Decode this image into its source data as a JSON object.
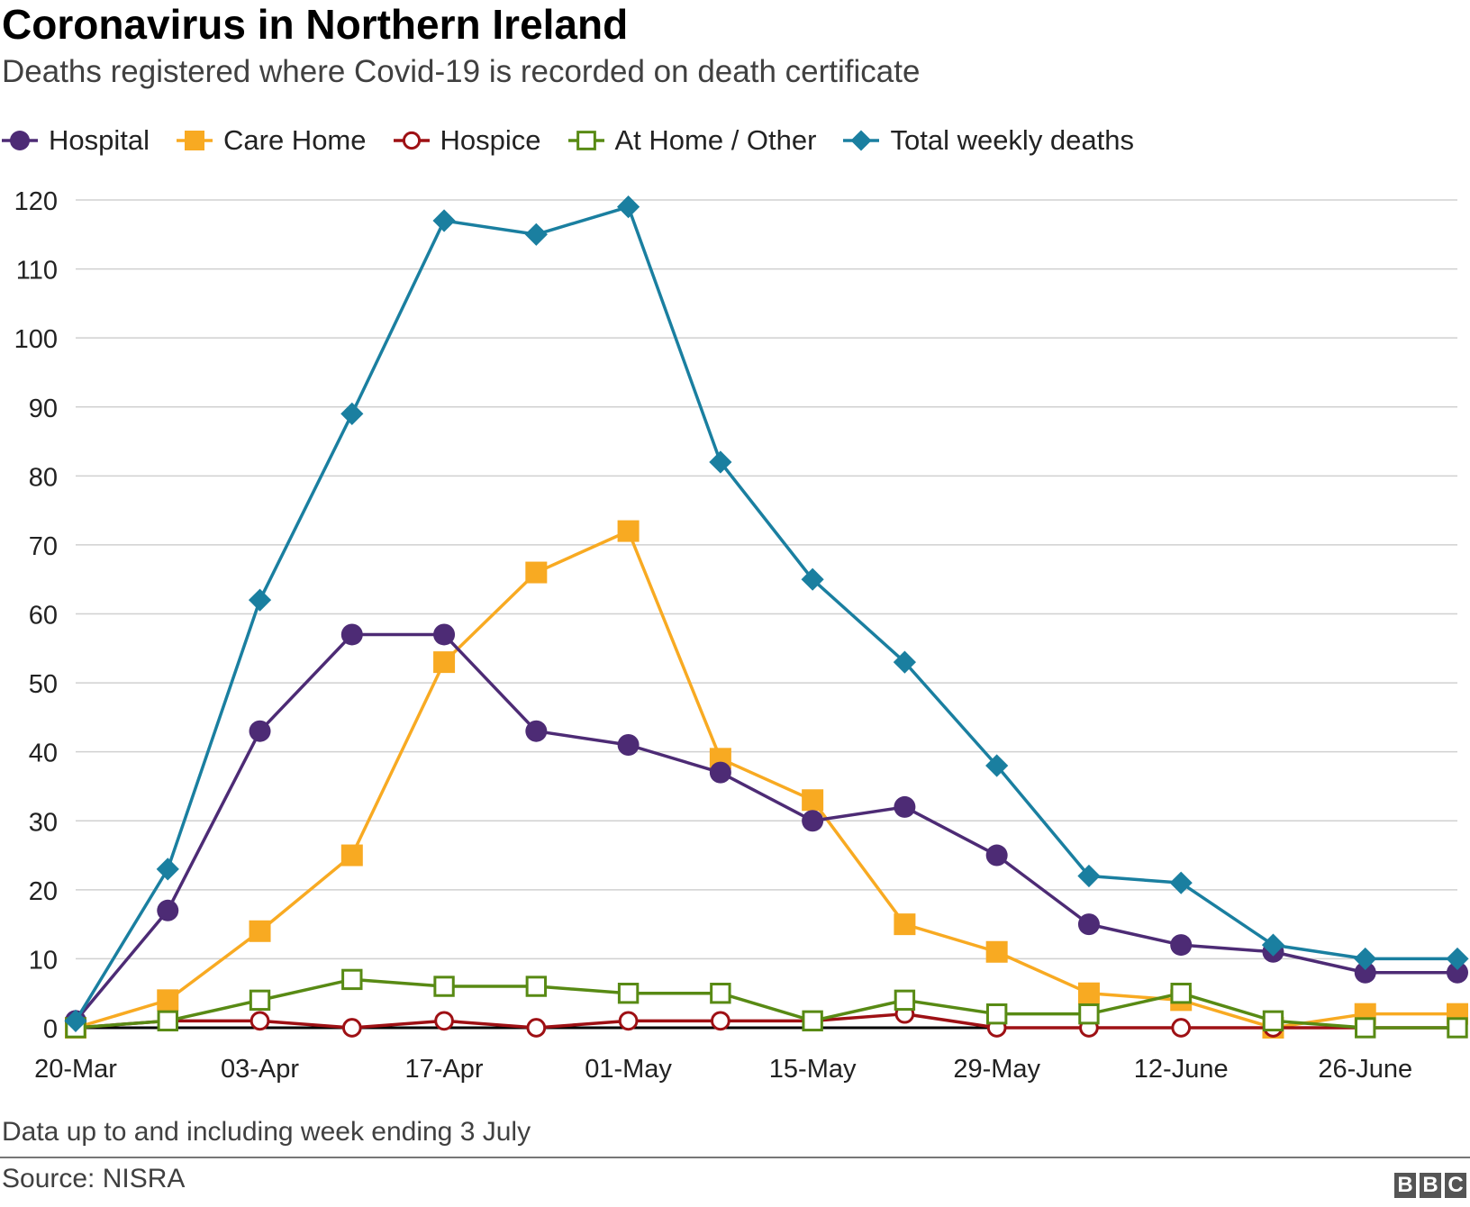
{
  "header": {
    "title": "Coronavirus in Northern Ireland",
    "subtitle": "Deaths registered where Covid-19 is recorded on death certificate"
  },
  "footer": {
    "note": "Data up to and including week ending 3 July",
    "source": "Source: NISRA",
    "logo": [
      "B",
      "B",
      "C"
    ]
  },
  "chart_data": {
    "type": "line",
    "title": "Coronavirus in Northern Ireland",
    "subtitle": "Deaths registered where Covid-19 is recorded on death certificate",
    "x": [
      "20-Mar",
      "27-Mar",
      "03-Apr",
      "10-Apr",
      "17-Apr",
      "24-Apr",
      "01-May",
      "08-May",
      "15-May",
      "22-May",
      "29-May",
      "05-June",
      "12-June",
      "19-June",
      "26-June",
      "03-July"
    ],
    "x_tick_labels": [
      {
        "index": 0,
        "label": "20-Mar"
      },
      {
        "index": 2,
        "label": "03-Apr"
      },
      {
        "index": 4,
        "label": "17-Apr"
      },
      {
        "index": 6,
        "label": "01-May"
      },
      {
        "index": 8,
        "label": "15-May"
      },
      {
        "index": 10,
        "label": "29-May"
      },
      {
        "index": 12,
        "label": "12-June"
      },
      {
        "index": 14,
        "label": "26-June"
      }
    ],
    "ylim": [
      0,
      120
    ],
    "y_ticks": [
      0,
      10,
      20,
      30,
      40,
      50,
      60,
      70,
      80,
      90,
      100,
      110,
      120
    ],
    "grid": "horizontal",
    "legend": "top",
    "xlabel": "",
    "ylabel": "",
    "series": [
      {
        "name": "Hospital",
        "color": "#4d2b75",
        "marker": "circle-filled",
        "values": [
          1,
          17,
          43,
          57,
          57,
          43,
          41,
          37,
          30,
          32,
          25,
          15,
          12,
          11,
          8,
          8
        ]
      },
      {
        "name": "Care Home",
        "color": "#f8aa22",
        "marker": "square-filled",
        "values": [
          0,
          4,
          14,
          25,
          53,
          66,
          72,
          39,
          33,
          15,
          11,
          5,
          4,
          0,
          2,
          2
        ]
      },
      {
        "name": "Hospice",
        "color": "#9e1014",
        "marker": "circle-open",
        "values": [
          0,
          1,
          1,
          0,
          1,
          0,
          1,
          1,
          1,
          2,
          0,
          0,
          0,
          0,
          0,
          0
        ]
      },
      {
        "name": "At Home / Other",
        "color": "#588a14",
        "marker": "square-open",
        "values": [
          0,
          1,
          4,
          7,
          6,
          6,
          5,
          5,
          1,
          4,
          2,
          2,
          5,
          1,
          0,
          0
        ]
      },
      {
        "name": "Total weekly deaths",
        "color": "#1a7fa0",
        "marker": "diamond-filled",
        "values": [
          1,
          23,
          62,
          89,
          117,
          115,
          119,
          82,
          65,
          53,
          38,
          22,
          21,
          12,
          10,
          10
        ]
      }
    ]
  }
}
